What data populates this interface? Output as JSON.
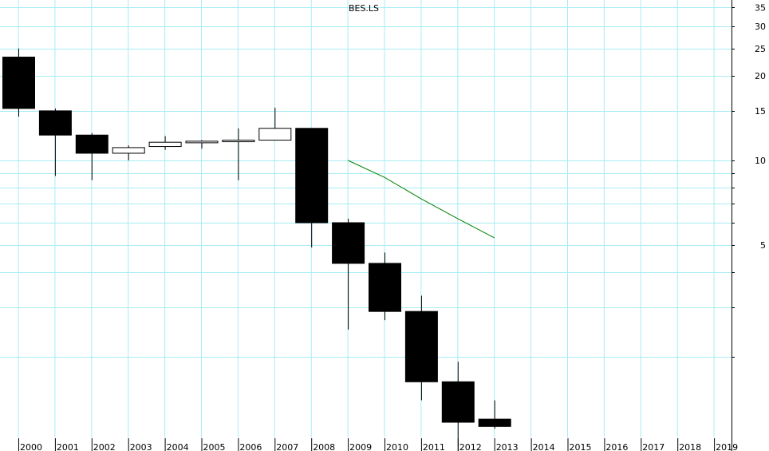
{
  "chart_data": {
    "type": "candlestick",
    "title": "BES.LS",
    "xlabel": "",
    "ylabel": "",
    "y_scale": "log",
    "ylim": [
      1.0,
      36
    ],
    "grid": true,
    "colors": {
      "grid": "#a8ecf4",
      "up": "#ffffff",
      "down": "#000000",
      "outline": "#000000",
      "trend": "#008000",
      "background": "#ffffff"
    },
    "x_tick_labels": [
      "2000",
      "2001",
      "2002",
      "2003",
      "2004",
      "2005",
      "2006",
      "2007",
      "2008",
      "2009",
      "2010",
      "2011",
      "2012",
      "2013",
      "2014",
      "2015",
      "2016",
      "2017",
      "2018",
      "2019"
    ],
    "y_tick_labels": [
      35,
      30,
      25,
      20,
      15,
      10,
      5
    ],
    "candles": [
      {
        "year": "2000",
        "open": 23.3,
        "high": 25.0,
        "low": 14.3,
        "close": 15.3
      },
      {
        "year": "2001",
        "open": 15.0,
        "high": 15.3,
        "low": 8.8,
        "close": 12.3
      },
      {
        "year": "2002",
        "open": 12.3,
        "high": 12.5,
        "low": 8.5,
        "close": 10.6
      },
      {
        "year": "2003",
        "open": 10.6,
        "high": 11.3,
        "low": 10.0,
        "close": 11.1
      },
      {
        "year": "2004",
        "open": 11.2,
        "high": 12.2,
        "low": 10.9,
        "close": 11.6
      },
      {
        "year": "2005",
        "open": 11.7,
        "high": 11.8,
        "low": 11.0,
        "close": 11.7
      },
      {
        "year": "2006",
        "open": 11.7,
        "high": 13.0,
        "low": 8.5,
        "close": 11.8
      },
      {
        "year": "2007",
        "open": 11.8,
        "high": 15.4,
        "low": 11.8,
        "close": 13.0
      },
      {
        "year": "2008",
        "open": 13.0,
        "high": 13.0,
        "low": 4.9,
        "close": 6.0
      },
      {
        "year": "2009",
        "open": 6.0,
        "high": 6.2,
        "low": 2.5,
        "close": 4.3
      },
      {
        "year": "2010",
        "open": 4.3,
        "high": 4.7,
        "low": 2.7,
        "close": 2.9
      },
      {
        "year": "2011",
        "open": 2.9,
        "high": 3.3,
        "low": 1.4,
        "close": 1.63
      },
      {
        "year": "2012",
        "open": 1.63,
        "high": 1.92,
        "low": 0.86,
        "close": 1.17
      },
      {
        "year": "2013",
        "open": 1.2,
        "high": 1.4,
        "low": 1.11,
        "close": 1.13
      }
    ],
    "series": [
      {
        "values": [
          {
            "x": "2009",
            "y": 10.0
          },
          {
            "x": "2010",
            "y": 8.7
          },
          {
            "x": "2011",
            "y": 7.3
          },
          {
            "x": "2012",
            "y": 6.2
          },
          {
            "x": "2013",
            "y": 5.3
          }
        ]
      }
    ]
  }
}
